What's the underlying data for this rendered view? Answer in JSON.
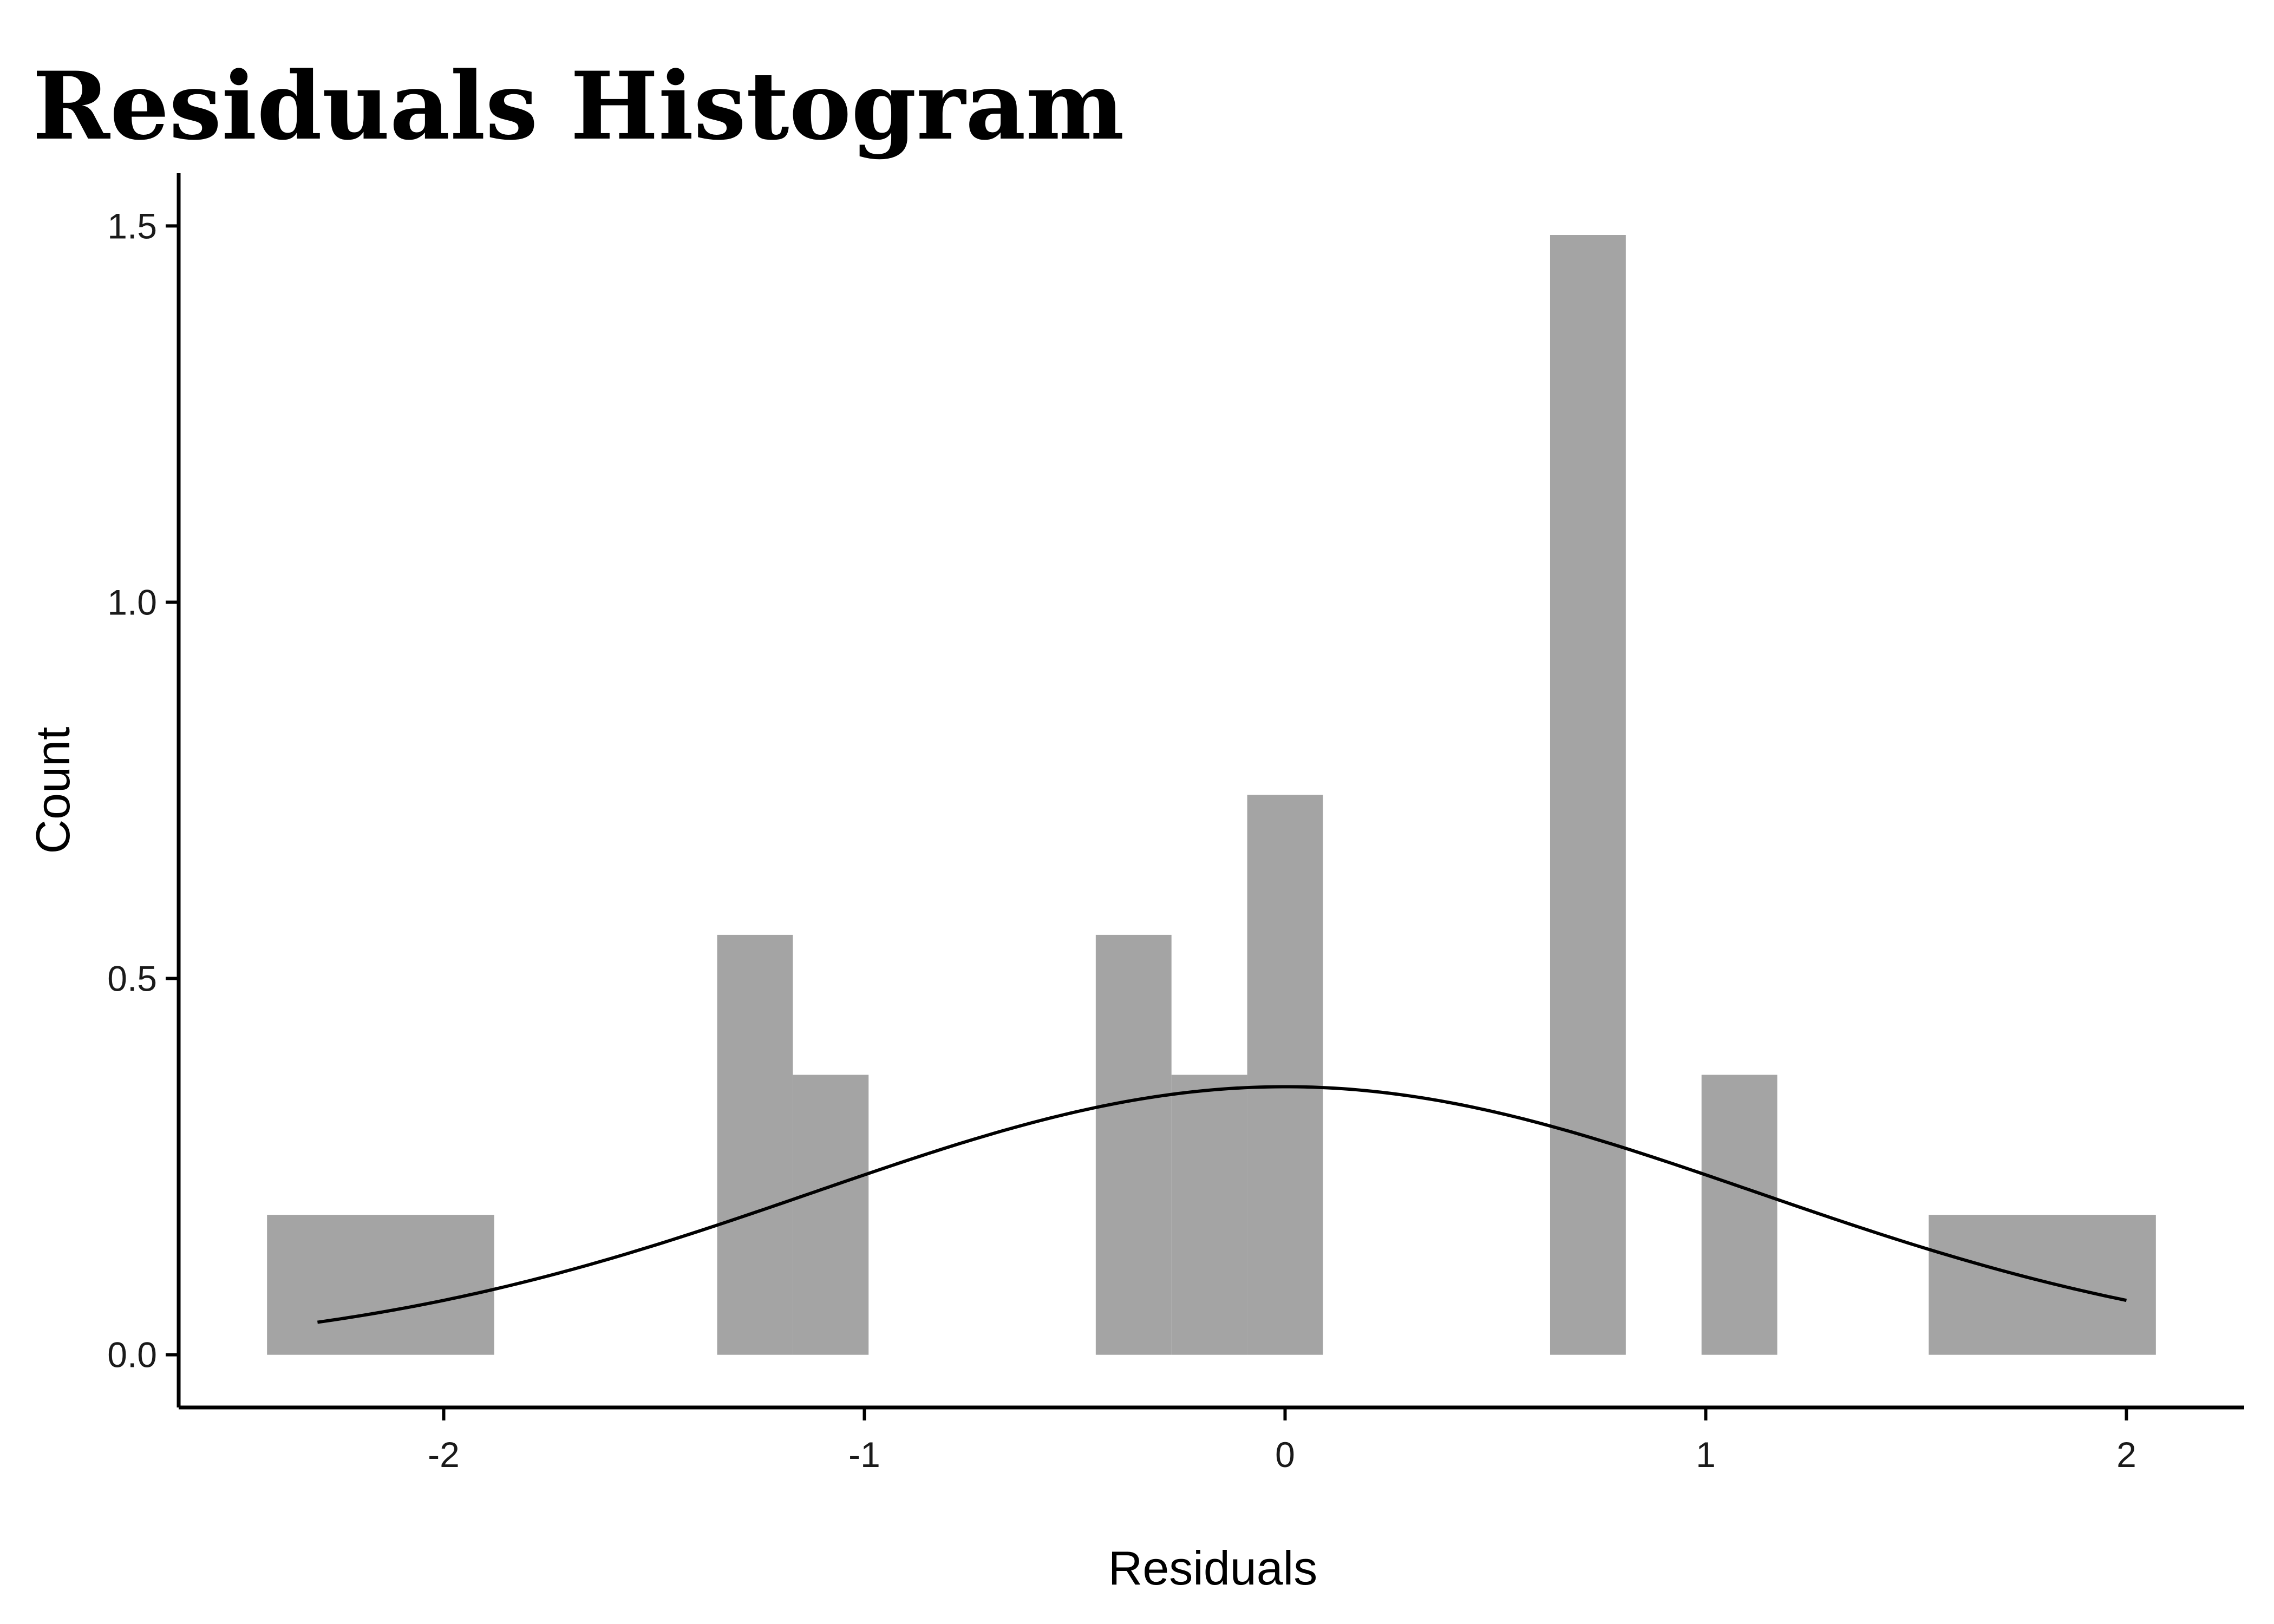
{
  "chart_data": {
    "type": "bar",
    "subtype": "histogram",
    "title": "Residuals Histogram",
    "xlabel": "Residuals",
    "ylabel": "Count",
    "xlim": [
      -2.63,
      2.28
    ],
    "ylim": [
      -0.07,
      1.57
    ],
    "x_ticks": [
      -2,
      -1,
      0,
      1,
      2
    ],
    "x_tick_labels": [
      "-2",
      "-1",
      "0",
      "1",
      "2"
    ],
    "y_ticks": [
      0.0,
      0.5,
      1.0,
      1.5
    ],
    "y_tick_labels": [
      "0.0",
      "0.5",
      "1.0",
      "1.5"
    ],
    "grid": false,
    "legend": "none",
    "bars": [
      {
        "x0": -2.42,
        "x1": -1.88,
        "value": 0.186
      },
      {
        "x0": -1.35,
        "x1": -1.17,
        "value": 0.558
      },
      {
        "x0": -1.17,
        "x1": -0.99,
        "value": 0.372
      },
      {
        "x0": -0.45,
        "x1": -0.27,
        "value": 0.558
      },
      {
        "x0": -0.27,
        "x1": -0.09,
        "value": 0.372
      },
      {
        "x0": -0.09,
        "x1": 0.09,
        "value": 0.744
      },
      {
        "x0": 0.63,
        "x1": 0.81,
        "value": 1.488
      },
      {
        "x0": 0.99,
        "x1": 1.17,
        "value": 0.372
      },
      {
        "x0": 1.53,
        "x1": 2.07,
        "value": 0.186
      }
    ],
    "density_curve": {
      "mean": 0.0,
      "sd": 1.12,
      "x_range": [
        -2.3,
        2.0
      ]
    },
    "colors": {
      "bar_fill": "#a4a4a4",
      "curve": "#000000",
      "axis": "#000000"
    }
  }
}
